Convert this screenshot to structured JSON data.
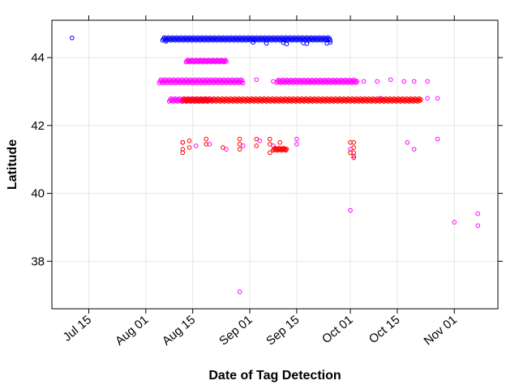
{
  "chart_data": {
    "type": "scatter",
    "title": "",
    "xlabel": "Date of Tag Detection",
    "ylabel": "Latitude",
    "x_type": "date",
    "xlim": [
      "2013-07-04",
      "2013-11-14"
    ],
    "ylim": [
      36.6,
      45.1
    ],
    "x_ticks": [
      {
        "date": "2013-07-15",
        "label": "Jul 15"
      },
      {
        "date": "2013-08-01",
        "label": "Aug 01"
      },
      {
        "date": "2013-08-15",
        "label": "Aug 15"
      },
      {
        "date": "2013-09-01",
        "label": "Sep 01"
      },
      {
        "date": "2013-09-15",
        "label": "Sep 15"
      },
      {
        "date": "2013-10-01",
        "label": "Oct 01"
      },
      {
        "date": "2013-10-15",
        "label": "Oct 15"
      },
      {
        "date": "2013-11-01",
        "label": "Nov 01"
      }
    ],
    "y_ticks": [
      38,
      40,
      42,
      44
    ],
    "grid": true,
    "legend": "none",
    "series": [
      {
        "color": "#0000FF",
        "bands": [
          {
            "start": "2013-08-06",
            "end": "2013-09-25",
            "y": 44.55,
            "jitter": 0.04
          }
        ],
        "points": [
          {
            "x": "2013-07-10",
            "y": 44.58
          },
          {
            "x": "2013-08-07",
            "y": 44.48
          },
          {
            "x": "2013-09-02",
            "y": 44.45
          },
          {
            "x": "2013-09-06",
            "y": 44.42
          },
          {
            "x": "2013-09-11",
            "y": 44.44
          },
          {
            "x": "2013-09-12",
            "y": 44.4
          },
          {
            "x": "2013-09-17",
            "y": 44.43
          },
          {
            "x": "2013-09-18",
            "y": 44.41
          },
          {
            "x": "2013-09-24",
            "y": 44.42
          },
          {
            "x": "2013-09-25",
            "y": 44.45
          }
        ]
      },
      {
        "color": "#FF00FF",
        "bands": [
          {
            "start": "2013-08-05",
            "end": "2013-08-30",
            "y": 43.3,
            "jitter": 0.05
          },
          {
            "start": "2013-08-13",
            "end": "2013-08-25",
            "y": 43.9,
            "jitter": 0.03
          },
          {
            "start": "2013-08-08",
            "end": "2013-08-20",
            "y": 42.75,
            "jitter": 0.04
          },
          {
            "start": "2013-09-09",
            "end": "2013-10-03",
            "y": 43.3,
            "jitter": 0.04
          }
        ],
        "points": [
          {
            "x": "2013-09-03",
            "y": 43.35
          },
          {
            "x": "2013-09-08",
            "y": 43.3
          },
          {
            "x": "2013-10-05",
            "y": 43.3
          },
          {
            "x": "2013-10-09",
            "y": 43.3
          },
          {
            "x": "2013-10-13",
            "y": 43.35
          },
          {
            "x": "2013-10-17",
            "y": 43.3
          },
          {
            "x": "2013-10-20",
            "y": 43.3
          },
          {
            "x": "2013-10-24",
            "y": 43.3
          },
          {
            "x": "2013-10-10",
            "y": 42.8
          },
          {
            "x": "2013-10-24",
            "y": 42.8
          },
          {
            "x": "2013-10-27",
            "y": 42.8
          },
          {
            "x": "2013-08-12",
            "y": 41.5
          },
          {
            "x": "2013-08-16",
            "y": 41.4
          },
          {
            "x": "2013-08-20",
            "y": 41.45
          },
          {
            "x": "2013-08-25",
            "y": 41.3
          },
          {
            "x": "2013-08-30",
            "y": 41.4
          },
          {
            "x": "2013-09-04",
            "y": 41.55
          },
          {
            "x": "2013-09-08",
            "y": 41.4
          },
          {
            "x": "2013-09-10",
            "y": 41.3
          },
          {
            "x": "2013-09-15",
            "y": 41.6
          },
          {
            "x": "2013-09-15",
            "y": 41.45
          },
          {
            "x": "2013-10-01",
            "y": 41.3
          },
          {
            "x": "2013-10-02",
            "y": 41.1
          },
          {
            "x": "2013-10-01",
            "y": 39.5
          },
          {
            "x": "2013-10-18",
            "y": 41.5
          },
          {
            "x": "2013-10-20",
            "y": 41.3
          },
          {
            "x": "2013-10-27",
            "y": 41.6
          },
          {
            "x": "2013-08-29",
            "y": 37.1
          },
          {
            "x": "2013-11-01",
            "y": 39.15
          },
          {
            "x": "2013-11-08",
            "y": 39.4
          },
          {
            "x": "2013-11-08",
            "y": 39.05
          }
        ]
      },
      {
        "color": "#FF0000",
        "bands": [
          {
            "start": "2013-08-12",
            "end": "2013-10-22",
            "y": 42.75,
            "jitter": 0.04
          },
          {
            "start": "2013-09-08",
            "end": "2013-09-12",
            "y": 41.3,
            "jitter": 0.03
          }
        ],
        "points": [
          {
            "x": "2013-08-12",
            "y": 41.5
          },
          {
            "x": "2013-08-12",
            "y": 41.3
          },
          {
            "x": "2013-08-12",
            "y": 41.2
          },
          {
            "x": "2013-08-14",
            "y": 41.55
          },
          {
            "x": "2013-08-14",
            "y": 41.35
          },
          {
            "x": "2013-08-19",
            "y": 41.6
          },
          {
            "x": "2013-08-19",
            "y": 41.45
          },
          {
            "x": "2013-08-24",
            "y": 41.35
          },
          {
            "x": "2013-08-29",
            "y": 41.6
          },
          {
            "x": "2013-08-29",
            "y": 41.45
          },
          {
            "x": "2013-08-29",
            "y": 41.3
          },
          {
            "x": "2013-09-03",
            "y": 41.6
          },
          {
            "x": "2013-09-03",
            "y": 41.4
          },
          {
            "x": "2013-09-07",
            "y": 41.6
          },
          {
            "x": "2013-09-07",
            "y": 41.45
          },
          {
            "x": "2013-09-07",
            "y": 41.2
          },
          {
            "x": "2013-09-10",
            "y": 41.5
          },
          {
            "x": "2013-10-01",
            "y": 41.5
          },
          {
            "x": "2013-10-01",
            "y": 41.2
          },
          {
            "x": "2013-10-02",
            "y": 41.5
          },
          {
            "x": "2013-10-02",
            "y": 41.35
          },
          {
            "x": "2013-10-02",
            "y": 41.2
          },
          {
            "x": "2013-10-02",
            "y": 41.05
          }
        ]
      }
    ]
  }
}
